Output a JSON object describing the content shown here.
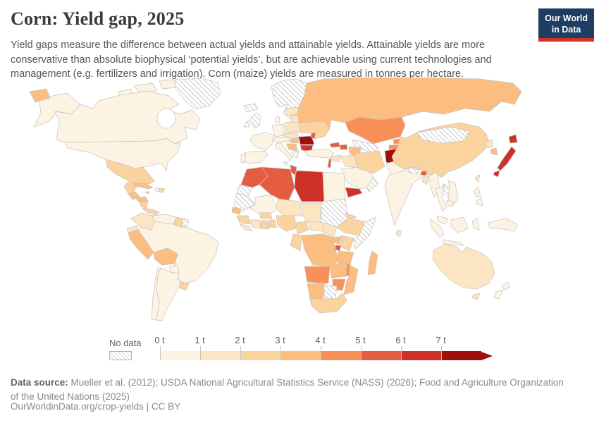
{
  "header": {
    "title": "Corn: Yield gap, 2025",
    "subtitle": "Yield gaps measure the difference between actual yields and attainable yields. Attainable yields are more conservative than absolute biophysical ‘potential yields’, but are achievable using current technologies and management (e.g. fertilizers and irrigation). Corn (maize) yields are measured in tonnes per hectare.",
    "logo": {
      "line1": "Our World",
      "line2": "in Data",
      "bg_color": "#1d3d63",
      "accent_color": "#d13328"
    }
  },
  "legend": {
    "no_data_label": "No data",
    "ticks": [
      "0 t",
      "1 t",
      "2 t",
      "3 t",
      "4 t",
      "5 t",
      "6 t",
      "7 t"
    ]
  },
  "footer": {
    "data_source_label": "Data source:",
    "data_source_text": " Mueller et al. (2012); USDA National Agricultural Statistics Service (NASS) (2026); Food and Agriculture Organization of the United Nations (2025)",
    "attribution": "OurWorldinData.org/crop-yields | CC BY"
  },
  "chart_data": {
    "type": "choropleth-map",
    "title": "Corn: Yield gap, 2025",
    "unit": "tonnes per hectare",
    "legend_position": "bottom",
    "band_colors": [
      "#fdf3e3",
      "#fce5c2",
      "#fbd39e",
      "#fcbd80",
      "#f89057",
      "#e45c42",
      "#ce3127",
      "#9d100e"
    ],
    "bands": [
      {
        "range": "0–1 t",
        "color": "#fdf3e3"
      },
      {
        "range": "1–2 t",
        "color": "#fce5c2"
      },
      {
        "range": "2–3 t",
        "color": "#fbd39e"
      },
      {
        "range": "3–4 t",
        "color": "#fcbd80"
      },
      {
        "range": "4–5 t",
        "color": "#f89057"
      },
      {
        "range": "5–6 t",
        "color": "#e45c42"
      },
      {
        "range": "6–7 t",
        "color": "#ce3127"
      },
      {
        "range": "7+ t",
        "color": "#9d100e"
      }
    ],
    "no_data": {
      "pattern": "hatched",
      "fill": "#ffffff",
      "stripe": "#d6d6d6"
    },
    "countries": {
      "greenland": "nd",
      "canada": 0,
      "united-states": 0,
      "mexico": 2,
      "cuba": 3,
      "haiti": "nd",
      "dominican-republic": 2,
      "jamaica": 3,
      "guatemala": 3,
      "honduras": 3,
      "nicaragua": 2,
      "costa-rica-panama": 2,
      "colombia": 1,
      "venezuela": 0,
      "guyana": 2,
      "suriname": "nd",
      "ecuador": 1,
      "peru": 3,
      "bolivia": 3,
      "brazil": 0,
      "paraguay": 0,
      "uruguay": 2,
      "argentina": 0,
      "chile": 0,
      "iceland": "nd",
      "scandinavia": "nd",
      "uk": "nd",
      "ireland": "nd",
      "denmark": 0,
      "france": 0,
      "spain": 0,
      "portugal": 0,
      "germany": 0,
      "poland": 1,
      "czech-slovakia": 1,
      "switzerland-austria": 0,
      "italy": 0,
      "hungary": 3,
      "croatia-serbia": 3,
      "greece": 0,
      "romania": 7,
      "bulgaria": 6,
      "moldova": 5,
      "ukraine": 2,
      "belarus": 1,
      "baltics": 1,
      "turkey": 0,
      "russia": 3,
      "kazakhstan": 4,
      "uzbekistan": "nd",
      "turkmenistan": 3,
      "kyrgyzstan": 4,
      "tajikistan": 4,
      "georgia": 5,
      "azerbaijan": 5,
      "syria": 1,
      "lebanon-israel": 5,
      "iraq": 1,
      "saudi-arabia": 0,
      "yemen": 6,
      "oman": "nd",
      "iran": 2,
      "afghanistan": 7,
      "pakistan": 0,
      "india": 0,
      "nepal": "nd",
      "bhutan": 5,
      "bangladesh": 1,
      "sri-lanka": 1,
      "china": 2,
      "mongolia": "nd",
      "north-korea": 1,
      "south-korea": 3,
      "japan": 6,
      "taiwan": 1,
      "myanmar": 0,
      "thailand": 0,
      "laos": "nd",
      "vietnam": 0,
      "cambodia": 0,
      "malaysia": 0,
      "philippines": 0,
      "indonesia": 0,
      "new-guinea": 0,
      "australia": 1,
      "new-zealand": 0,
      "morocco": 5,
      "western-sahara": "nd",
      "algeria": 5,
      "tunisia": 5,
      "libya": 6,
      "egypt": 0,
      "mauritania": "nd",
      "mali": 0,
      "niger": 1,
      "chad": 1,
      "sudan": "nd",
      "eritrea": 2,
      "senegal": 3,
      "guinea": 2,
      "sierra-leone-liberia": 1,
      "ivory-coast": 1,
      "ghana": 2,
      "togo-benin": 2,
      "burkina-faso": 2,
      "nigeria": 2,
      "cameroon": 2,
      "central-african-republic": 1,
      "south-sudan": 1,
      "ethiopia": 2,
      "somalia": "nd",
      "uganda": 3,
      "kenya": 2,
      "rwanda-burundi": 5,
      "dr-congo": 3,
      "congo-gabon": 2,
      "tanzania": 3,
      "angola": 4,
      "zambia": 3,
      "malawi": 4,
      "mozambique": 3,
      "zimbabwe": 4,
      "namibia": 3,
      "botswana": "nd",
      "south-africa": 2,
      "madagascar": 3
    }
  }
}
